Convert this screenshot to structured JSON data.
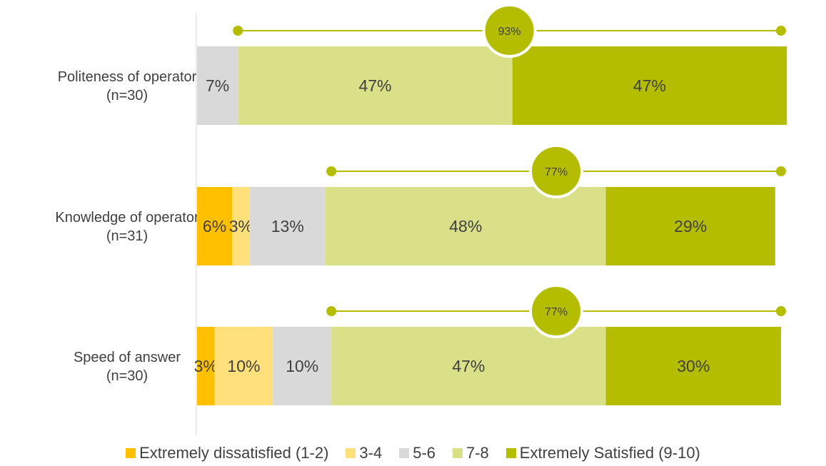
{
  "chart_data": {
    "type": "bar",
    "stacked": true,
    "orientation": "horizontal",
    "unit": "%",
    "categories": [
      [
        "Politeness of operator",
        "(n=30)"
      ],
      [
        "Knowledge of operator",
        "(n=31)"
      ],
      [
        "Speed of answer",
        "(n=30)"
      ]
    ],
    "series": [
      {
        "name": "Extremely dissatisfied (1-2)",
        "color": "#FFC000",
        "values": [
          0,
          6,
          3
        ]
      },
      {
        "name": "3-4",
        "color": "#FFE07A",
        "values": [
          0,
          3,
          10
        ]
      },
      {
        "name": "5-6",
        "color": "#D9D9D9",
        "values": [
          7,
          13,
          10
        ]
      },
      {
        "name": "7-8",
        "color": "#D9E088",
        "values": [
          47,
          48,
          47
        ]
      },
      {
        "name": "Extremely Satisfied (9-10)",
        "color": "#B5BD00",
        "values": [
          47,
          29,
          30
        ]
      }
    ],
    "top_box": {
      "values": [
        93,
        77,
        77
      ],
      "labels": [
        "93%",
        "77%",
        "77%"
      ],
      "color": "#B5BD00"
    },
    "xlim": [
      0,
      100
    ],
    "legend_position": "bottom",
    "grid": false
  }
}
